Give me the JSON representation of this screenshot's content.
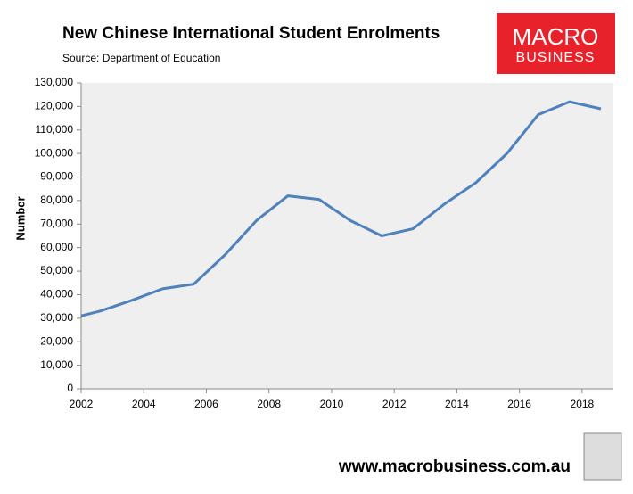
{
  "chart_data": {
    "type": "line",
    "title": "New Chinese International Student Enrolments",
    "subtitle": "Source: Department of Education",
    "y_label": "Number",
    "logo": {
      "line1": "MACRO",
      "line2": "BUSINESS"
    },
    "footer": "www.macrobusiness.com.au",
    "x": [
      2002,
      2002.6,
      2003.6,
      2004.6,
      2005.6,
      2006.6,
      2007.6,
      2008.6,
      2009.6,
      2010.6,
      2011.6,
      2012.6,
      2013.6,
      2014.6,
      2015.6,
      2016.6,
      2017.6,
      2018.6
    ],
    "series": [
      {
        "name": "Enrolments",
        "color": "#4f81bd",
        "values": [
          31000,
          33000,
          37500,
          42500,
          44500,
          57000,
          71500,
          82000,
          80500,
          71500,
          65000,
          68000,
          78500,
          87500,
          100000,
          116500,
          122000,
          119000
        ]
      }
    ],
    "xlim": [
      2002,
      2019
    ],
    "xticks": [
      2002,
      2004,
      2006,
      2008,
      2010,
      2012,
      2014,
      2016,
      2018
    ],
    "ylim": [
      0,
      130000
    ],
    "yticks": [
      0,
      {
        "value": 10000,
        "label": "10,000"
      },
      {
        "value": 20000,
        "label": "20,000"
      },
      {
        "value": 30000,
        "label": "30,000"
      },
      {
        "value": 40000,
        "label": "40,000"
      },
      {
        "value": 50000,
        "label": "50,000"
      },
      {
        "value": 60000,
        "label": "60,000"
      },
      {
        "value": 70000,
        "label": "70,000"
      },
      {
        "value": 80000,
        "label": "80,000"
      },
      {
        "value": 90000,
        "label": "90,000"
      },
      {
        "value": 100000,
        "label": "100,000"
      },
      {
        "value": 110000,
        "label": "110,000"
      },
      {
        "value": 120000,
        "label": "120,000"
      },
      {
        "value": 130000,
        "label": "130,000"
      }
    ],
    "grid": false
  }
}
